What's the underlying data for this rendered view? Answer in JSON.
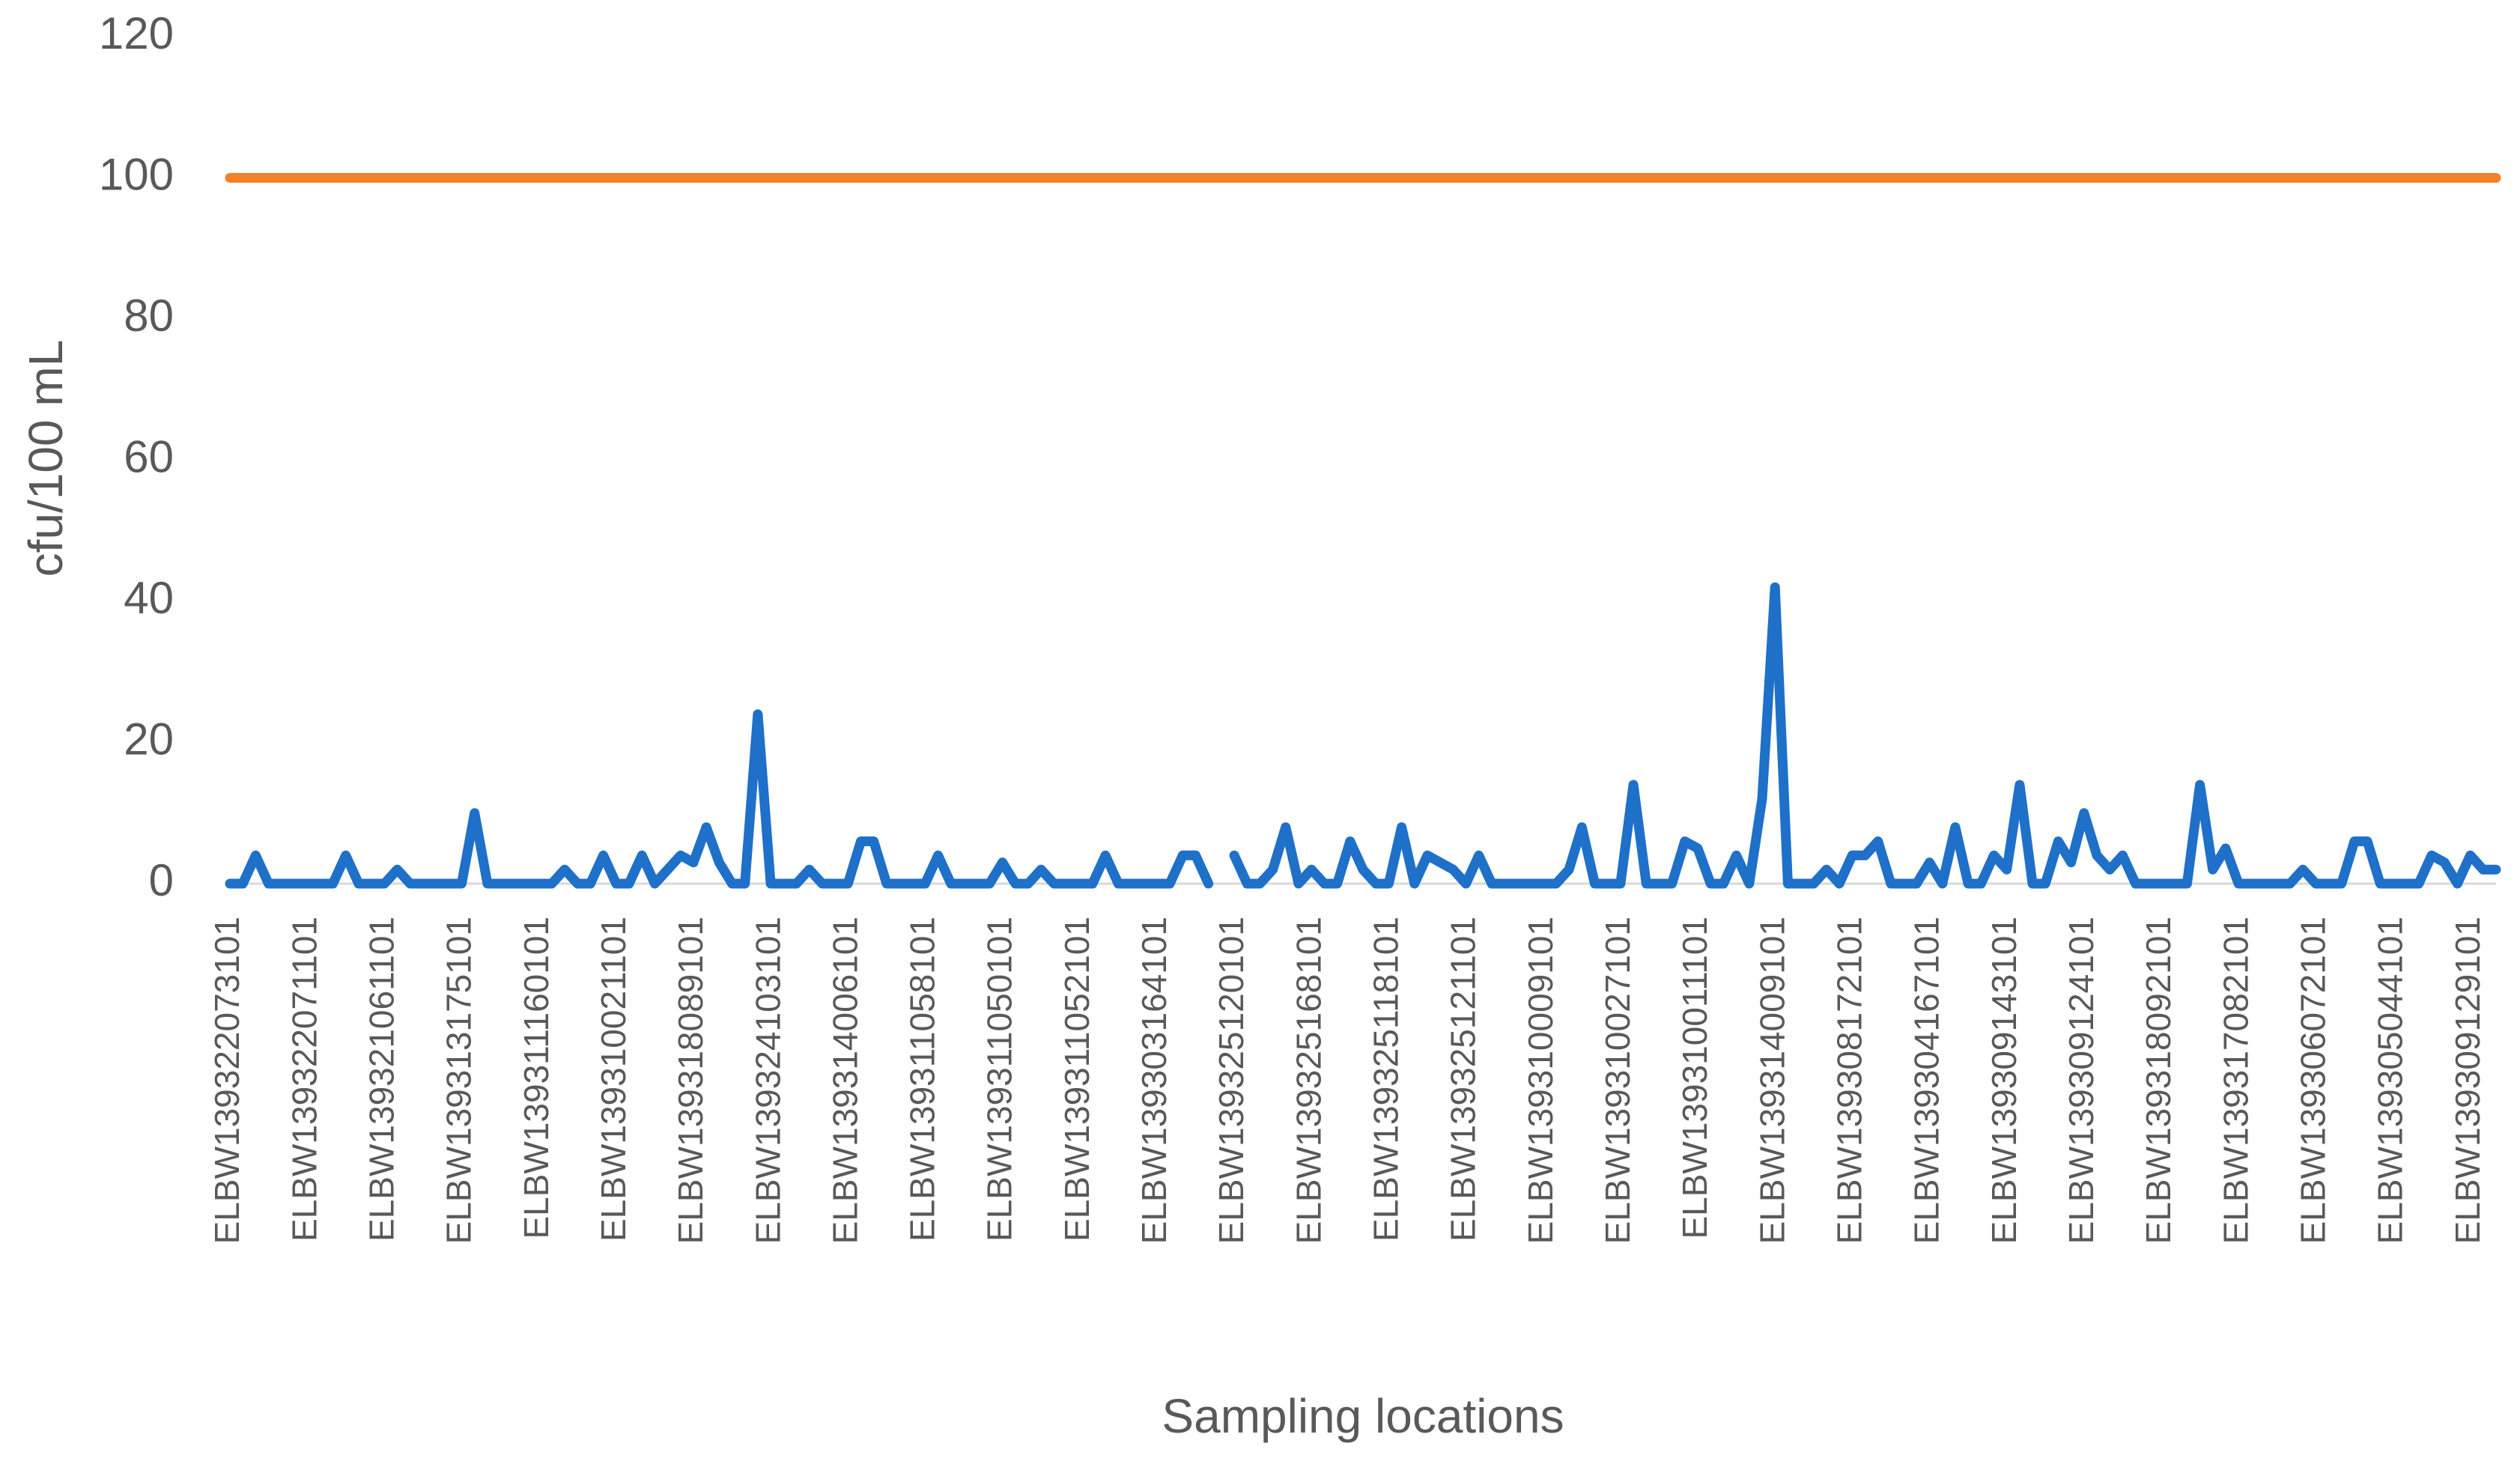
{
  "chart_data": {
    "type": "line",
    "x_label": "Sampling locations",
    "y_label": "cfu/100 mL",
    "categories": [
      "ELBW139322073101",
      null,
      null,
      null,
      null,
      null,
      "ELBW139322071101",
      null,
      null,
      null,
      null,
      null,
      "ELBW139321061101",
      null,
      null,
      null,
      null,
      null,
      "ELBW139313175101",
      null,
      null,
      null,
      null,
      null,
      "ELBW139311160101",
      null,
      null,
      null,
      null,
      null,
      "ELBW139310021101",
      null,
      null,
      null,
      null,
      null,
      "ELBW139318089101",
      null,
      null,
      null,
      null,
      null,
      "ELBW139324103101",
      null,
      null,
      null,
      null,
      null,
      "ELBW139314006101",
      null,
      null,
      null,
      null,
      null,
      "ELBW139311058101",
      null,
      null,
      null,
      null,
      null,
      "ELBW139311050101",
      null,
      null,
      null,
      null,
      null,
      "ELBW139311052101",
      null,
      null,
      null,
      null,
      null,
      "ELBW139303164101",
      null,
      null,
      null,
      null,
      null,
      "ELBW139325120101",
      null,
      null,
      null,
      null,
      null,
      "ELBW139325168101",
      null,
      null,
      null,
      null,
      null,
      "ELBW139325118101",
      null,
      null,
      null,
      null,
      null,
      "ELBW139325121101",
      null,
      null,
      null,
      null,
      null,
      "ELBW139310009101",
      null,
      null,
      null,
      null,
      null,
      "ELBW139310027101",
      null,
      null,
      null,
      null,
      null,
      "ELBW139310011101",
      null,
      null,
      null,
      null,
      null,
      "ELBW139314009101",
      null,
      null,
      null,
      null,
      null,
      "ELBW139308172101",
      null,
      null,
      null,
      null,
      null,
      "ELBW139304167101",
      null,
      null,
      null,
      null,
      null,
      "ELBW139309143101",
      null,
      null,
      null,
      null,
      null,
      "ELBW139309124101",
      null,
      null,
      null,
      null,
      null,
      "ELBW139318092101",
      null,
      null,
      null,
      null,
      null,
      "ELBW139317082101",
      null,
      null,
      null,
      null,
      null,
      "ELBW139306072101",
      null,
      null,
      null,
      null,
      null,
      "ELBW139305044101",
      null,
      null,
      null,
      null,
      null,
      "ELBW139309129101",
      null,
      null
    ],
    "series": [
      {
        "color": "#1f70c8",
        "values": [
          0,
          0,
          4,
          0,
          0,
          0,
          0,
          0,
          0,
          4,
          0,
          0,
          0,
          2,
          0,
          0,
          0,
          0,
          0,
          10,
          0,
          0,
          0,
          0,
          0,
          0,
          2,
          0,
          0,
          4,
          0,
          0,
          4,
          0,
          2,
          4,
          3,
          8,
          3,
          0,
          0,
          24,
          0,
          0,
          0,
          2,
          0,
          0,
          0,
          6,
          6,
          0,
          0,
          0,
          0,
          4,
          0,
          0,
          0,
          0,
          3,
          0,
          0,
          2,
          0,
          0,
          0,
          0,
          4,
          0,
          0,
          0,
          0,
          0,
          4,
          4,
          0,
          null,
          4,
          0,
          0,
          2,
          8,
          0,
          2,
          0,
          0,
          6,
          2,
          0,
          0,
          8,
          0,
          4,
          3,
          2,
          0,
          4,
          0,
          0,
          0,
          0,
          0,
          0,
          2,
          8,
          0,
          0,
          0,
          14,
          0,
          0,
          0,
          6,
          5,
          0,
          0,
          4,
          0,
          12,
          42,
          0,
          0,
          0,
          2,
          0,
          4,
          4,
          6,
          0,
          0,
          0,
          3,
          0,
          8,
          0,
          0,
          4,
          2,
          14,
          0,
          0,
          6,
          3,
          10,
          4,
          2,
          4,
          0,
          0,
          0,
          0,
          0,
          14,
          2,
          5,
          0,
          0,
          0,
          0,
          0,
          2,
          0,
          0,
          0,
          6,
          6,
          0,
          0,
          0,
          0,
          4,
          3,
          0,
          4,
          2,
          2
        ]
      },
      {
        "color": "#f58025",
        "values": [
          100,
          100,
          100,
          100,
          100,
          100,
          100,
          100,
          100,
          100,
          100,
          100,
          100,
          100,
          100,
          100,
          100,
          100,
          100,
          100,
          100,
          100,
          100,
          100,
          100,
          100,
          100,
          100,
          100,
          100,
          100,
          100,
          100,
          100,
          100,
          100,
          100,
          100,
          100,
          100,
          100,
          100,
          100,
          100,
          100,
          100,
          100,
          100,
          100,
          100,
          100,
          100,
          100,
          100,
          100,
          100,
          100,
          100,
          100,
          100,
          100,
          100,
          100,
          100,
          100,
          100,
          100,
          100,
          100,
          100,
          100,
          100,
          100,
          100,
          100,
          100,
          100,
          100,
          100,
          100,
          100,
          100,
          100,
          100,
          100,
          100,
          100,
          100,
          100,
          100,
          100,
          100,
          100,
          100,
          100,
          100,
          100,
          100,
          100,
          100,
          100,
          100,
          100,
          100,
          100,
          100,
          100,
          100,
          100,
          100,
          100,
          100,
          100,
          100,
          100,
          100,
          100,
          100,
          100,
          100,
          100,
          100,
          100,
          100,
          100,
          100,
          100,
          100,
          100,
          100,
          100,
          100,
          100,
          100,
          100,
          100,
          100,
          100,
          100,
          100,
          100,
          100,
          100,
          100,
          100,
          100,
          100,
          100,
          100,
          100,
          100,
          100,
          100,
          100,
          100,
          100,
          100,
          100,
          100,
          100,
          100,
          100,
          100,
          100,
          100,
          100,
          100,
          100,
          100,
          100,
          100,
          100,
          100,
          100,
          100,
          100,
          100
        ]
      }
    ],
    "ylim": [
      0,
      120
    ],
    "yticks": [
      0,
      20,
      40,
      60,
      80,
      100,
      120
    ],
    "grid": false
  }
}
